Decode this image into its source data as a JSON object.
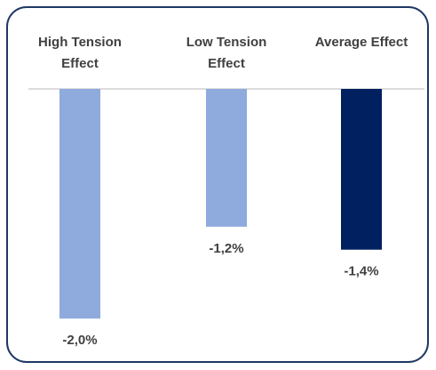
{
  "chart_data": {
    "type": "bar",
    "categories": [
      "High Tension Effect",
      "Low Tension Effect",
      "Average Effect"
    ],
    "values": [
      -2.0,
      -1.2,
      -1.4
    ],
    "value_labels": [
      "-2,0%",
      "-1,2%",
      "-1,4%"
    ],
    "colors": [
      "#8faadc",
      "#8faadc",
      "#002060"
    ],
    "ylim": [
      -2.2,
      0
    ]
  }
}
